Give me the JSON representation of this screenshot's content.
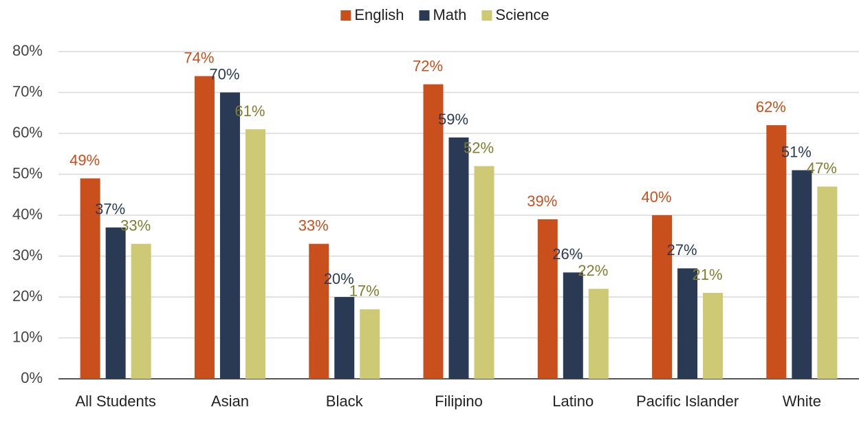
{
  "chart_data": {
    "type": "bar",
    "categories": [
      "All Students",
      "Asian",
      "Black",
      "Filipino",
      "Latino",
      "Pacific Islander",
      "White"
    ],
    "series": [
      {
        "name": "English",
        "color": "#c94f1c",
        "label_color": "#c94f1c",
        "values": [
          49,
          74,
          33,
          72,
          39,
          40,
          62
        ],
        "value_labels": [
          "49%",
          "74%",
          "33%",
          "72%",
          "39%",
          "40%",
          "62%"
        ]
      },
      {
        "name": "Math",
        "color": "#2a3a54",
        "label_color": "#2a3a54",
        "values": [
          37,
          70,
          20,
          59,
          26,
          27,
          51
        ],
        "value_labels": [
          "37%",
          "70%",
          "20%",
          "59%",
          "26%",
          "27%",
          "51%"
        ]
      },
      {
        "name": "Science",
        "color": "#cdc974",
        "label_color": "#7f7d2e",
        "values": [
          33,
          61,
          17,
          52,
          22,
          21,
          47
        ],
        "value_labels": [
          "33%",
          "61%",
          "17%",
          "52%",
          "22%",
          "21%",
          "47%"
        ]
      }
    ],
    "ylim": [
      0,
      80
    ],
    "yticks": [
      {
        "value": 0,
        "label": "0%"
      },
      {
        "value": 10,
        "label": "10%"
      },
      {
        "value": 20,
        "label": "20%"
      },
      {
        "value": 30,
        "label": "30%"
      },
      {
        "value": 40,
        "label": "40%"
      },
      {
        "value": 50,
        "label": "50%"
      },
      {
        "value": 60,
        "label": "60%"
      },
      {
        "value": 70,
        "label": "70%"
      },
      {
        "value": 80,
        "label": "80%"
      }
    ],
    "grid": true,
    "legend": "top"
  }
}
